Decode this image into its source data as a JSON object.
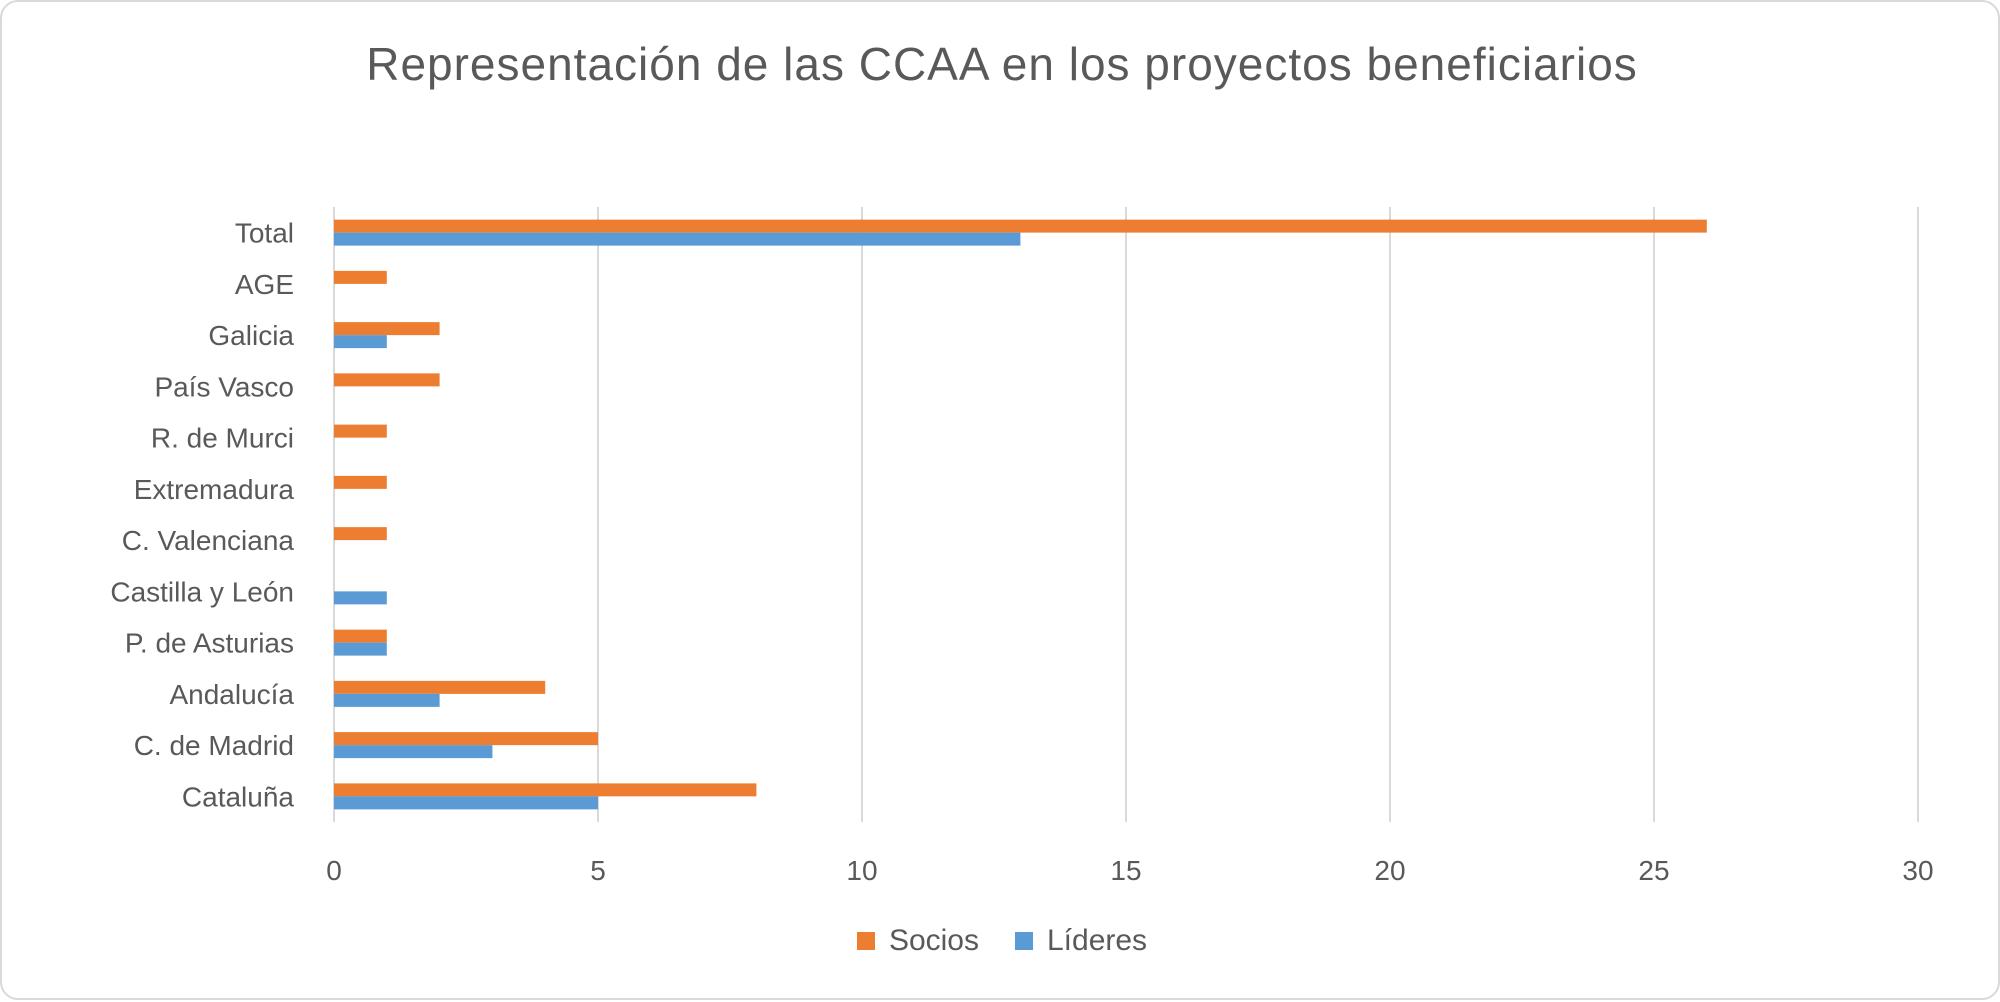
{
  "chart_data": {
    "type": "bar",
    "orientation": "horizontal",
    "title": "Representación de las CCAA en los proyectos beneficiarios",
    "categories": [
      "Cataluña",
      "C. de Madrid",
      "Andalucía",
      "P. de Asturias",
      "Castilla y León",
      "C. Valenciana",
      "Extremadura",
      "R. de Murci",
      "País Vasco",
      "Galicia",
      "AGE",
      "Total"
    ],
    "series": [
      {
        "name": "Socios",
        "color": "#ED7D31",
        "values": [
          8,
          5,
          4,
          1,
          0,
          1,
          1,
          1,
          2,
          2,
          1,
          26
        ]
      },
      {
        "name": "Líderes",
        "color": "#5B9BD5",
        "values": [
          5,
          3,
          2,
          1,
          1,
          0,
          0,
          0,
          0,
          1,
          0,
          13
        ]
      }
    ],
    "xlim": [
      0,
      30
    ],
    "xticks": [
      0,
      5,
      10,
      15,
      20,
      25,
      30
    ],
    "grid": true,
    "legend_position": "bottom"
  }
}
